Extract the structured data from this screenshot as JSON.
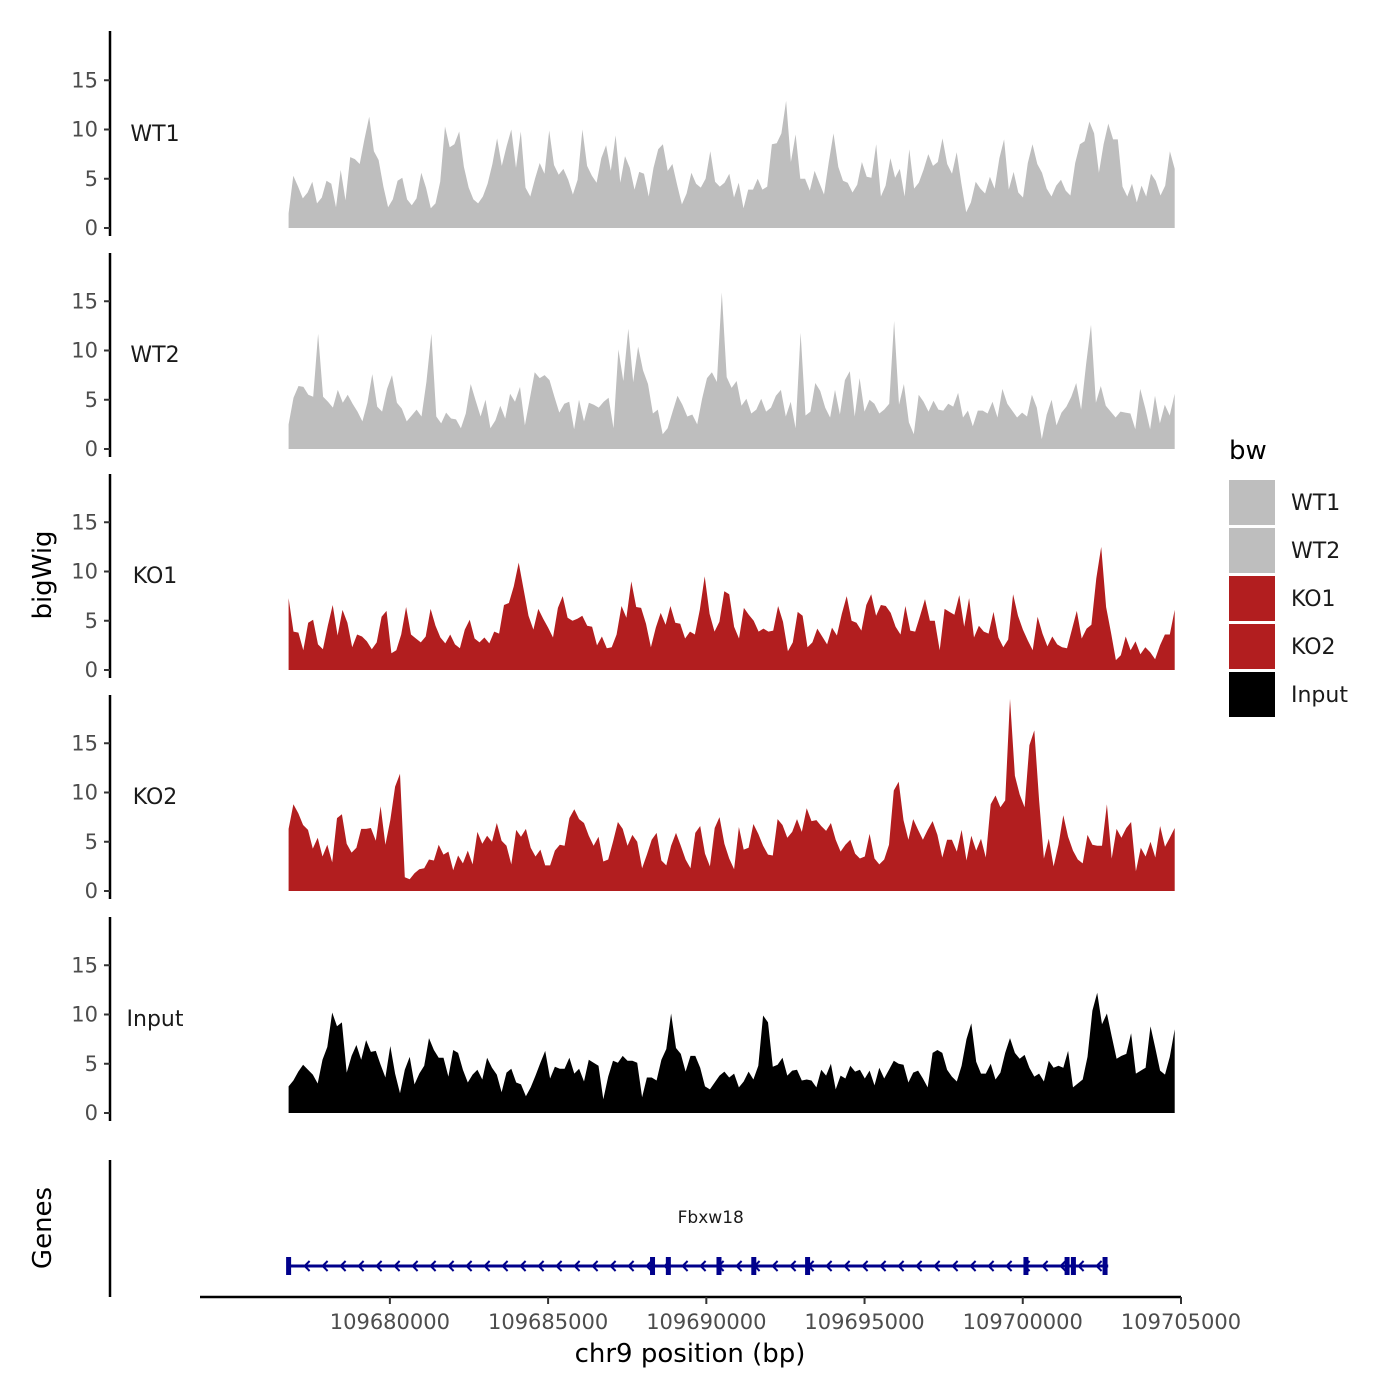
{
  "chart_data": {
    "type": "area",
    "chromosome": "chr9",
    "x_range_bp": [
      109676800,
      109704800
    ],
    "xlim": [
      109674000,
      109705000
    ],
    "x_ticks": [
      109680000,
      109685000,
      109690000,
      109695000,
      109700000,
      109705000
    ],
    "x_tick_labels": [
      "109680000",
      "109685000",
      "109690000",
      "109695000",
      "109700000",
      "109705000"
    ],
    "xlabel": "chr9 position (bp)",
    "ylabel": "bigWig",
    "genes_label": "Genes",
    "ylim": [
      0,
      20
    ],
    "y_ticks": [
      0,
      5,
      10,
      15
    ],
    "y_tick_labels": [
      "0",
      "5",
      "10",
      "15"
    ],
    "series": [
      {
        "name": "WT1",
        "color": "#bebebe",
        "values": [
          1.5,
          5.3,
          4.2,
          3.0,
          3.6,
          4.7,
          2.5,
          3.1,
          4.8,
          4.5,
          2.1,
          5.9,
          2.8,
          7.2,
          7.0,
          6.5,
          9.0,
          11.3,
          7.8,
          6.9,
          4.2,
          2.1,
          2.9,
          4.8,
          5.1,
          2.9,
          2.3,
          3.0,
          5.6,
          4.1,
          2.0,
          2.5,
          4.7,
          10.3,
          8.2,
          8.5,
          9.8,
          6.2,
          4.1,
          2.9,
          2.5,
          3.2,
          4.5,
          6.5,
          9.1,
          6.3,
          8.3,
          10.0,
          6.1,
          9.8,
          4.1,
          3.2,
          5.0,
          6.6,
          5.5,
          9.9,
          6.4,
          5.4,
          6.0,
          4.9,
          3.4,
          4.9,
          10.0,
          6.3,
          5.3,
          4.6,
          7.1,
          8.4,
          5.8,
          9.4,
          4.6,
          7.3,
          6.1,
          3.9,
          5.7,
          5.5,
          3.2,
          6.1,
          8.0,
          8.5,
          5.8,
          6.5,
          4.4,
          2.4,
          3.5,
          5.6,
          4.5,
          4.1,
          5.0,
          7.8,
          4.7,
          4.2,
          4.6,
          5.5,
          3.1,
          4.6,
          2.0,
          3.9,
          3.9,
          5.0,
          3.9,
          4.2,
          8.5,
          8.6,
          9.6,
          12.9,
          6.7,
          9.5,
          5.0,
          5.0,
          3.8,
          5.8,
          4.6,
          3.4,
          6.7,
          9.6,
          6.2,
          4.8,
          4.6,
          3.6,
          4.4,
          6.7,
          5.2,
          5.1,
          8.5,
          3.2,
          4.3,
          7.1,
          5.1,
          6.0,
          3.2,
          8.0,
          4.0,
          4.6,
          5.9,
          7.5,
          6.3,
          6.7,
          9.1,
          6.5,
          5.5,
          7.7,
          4.5,
          1.6,
          2.6,
          4.7,
          4.0,
          3.5,
          5.2,
          4.0,
          7.1,
          9.0,
          3.9,
          5.7,
          3.6,
          3.1,
          6.6,
          8.5,
          6.5,
          5.6,
          4.0,
          3.2,
          4.3,
          4.9,
          3.8,
          3.3,
          6.6,
          8.5,
          8.8,
          10.8,
          9.6,
          5.6,
          8.5,
          10.6,
          9.0,
          9.0,
          4.2,
          3.2,
          4.5,
          2.6,
          4.3,
          3.2,
          5.5,
          4.8,
          3.3,
          4.3,
          7.8,
          6.0
        ]
      },
      {
        "name": "WT2",
        "color": "#bebebe",
        "values": [
          2.5,
          5.2,
          6.4,
          6.3,
          5.5,
          5.3,
          11.7,
          5.3,
          4.8,
          4.2,
          6.0,
          4.7,
          5.5,
          4.6,
          3.8,
          2.8,
          4.7,
          7.6,
          4.3,
          3.8,
          6.1,
          7.5,
          4.7,
          4.1,
          2.8,
          3.4,
          4.0,
          3.3,
          6.8,
          11.7,
          3.3,
          2.6,
          3.7,
          3.1,
          3.0,
          2.1,
          3.6,
          6.6,
          4.9,
          3.3,
          5.0,
          2.1,
          2.9,
          4.4,
          3.1,
          5.6,
          4.8,
          6.3,
          2.4,
          5.1,
          7.8,
          7.2,
          7.5,
          7.0,
          5.3,
          3.7,
          4.6,
          4.8,
          2.0,
          5.0,
          2.8,
          4.7,
          4.5,
          4.2,
          4.8,
          5.2,
          2.1,
          10.1,
          6.9,
          12.2,
          6.8,
          10.4,
          8.0,
          6.6,
          3.6,
          4.0,
          1.5,
          2.1,
          3.8,
          5.4,
          4.5,
          3.3,
          3.5,
          2.5,
          5.1,
          7.2,
          7.8,
          6.8,
          15.9,
          7.3,
          6.2,
          6.9,
          4.4,
          5.1,
          3.6,
          4.0,
          5.1,
          3.8,
          4.2,
          5.4,
          6.0,
          3.3,
          4.8,
          2.1,
          11.8,
          3.4,
          3.8,
          6.7,
          5.9,
          4.2,
          3.2,
          6.0,
          3.5,
          7.0,
          7.9,
          3.3,
          7.2,
          3.8,
          5.0,
          4.6,
          3.6,
          4.0,
          4.6,
          13.0,
          4.5,
          6.6,
          2.7,
          1.5,
          5.5,
          4.8,
          3.8,
          4.9,
          4.0,
          3.9,
          4.6,
          4.3,
          5.7,
          3.2,
          3.9,
          2.3,
          3.9,
          3.9,
          3.6,
          4.8,
          3.2,
          6.1,
          4.6,
          3.9,
          3.2,
          3.7,
          3.3,
          5.5,
          4.2,
          1.0,
          3.5,
          5.0,
          2.4,
          3.7,
          4.3,
          5.3,
          6.7,
          4.0,
          8.6,
          12.6,
          4.7,
          6.4,
          4.4,
          3.8,
          3.2,
          3.8,
          3.7,
          3.6,
          2.0,
          6.1,
          4.2,
          2.0,
          5.4,
          2.6,
          4.5,
          3.4,
          5.6
        ]
      },
      {
        "name": "KO1",
        "color": "#b21e1f",
        "values": [
          7.3,
          3.9,
          3.8,
          2.0,
          4.8,
          5.1,
          2.6,
          2.1,
          4.5,
          6.6,
          3.5,
          6.1,
          4.8,
          2.3,
          3.6,
          3.4,
          2.9,
          2.1,
          2.8,
          5.4,
          6.0,
          1.7,
          2.0,
          3.6,
          6.4,
          3.6,
          3.2,
          2.8,
          3.4,
          6.2,
          4.5,
          3.3,
          2.7,
          3.6,
          2.6,
          2.2,
          4.1,
          5.1,
          3.2,
          2.8,
          3.3,
          2.7,
          3.9,
          3.7,
          6.6,
          6.8,
          8.5,
          10.9,
          8.2,
          5.5,
          4.1,
          6.2,
          5.2,
          4.3,
          3.3,
          6.3,
          7.5,
          5.3,
          5.0,
          5.2,
          5.5,
          4.5,
          4.4,
          2.5,
          3.4,
          2.2,
          2.3,
          3.6,
          6.5,
          5.3,
          9.0,
          6.4,
          6.3,
          4.7,
          2.3,
          4.3,
          5.8,
          4.6,
          6.5,
          4.8,
          4.7,
          3.2,
          3.9,
          3.6,
          6.1,
          9.5,
          5.7,
          3.9,
          4.9,
          8.0,
          7.7,
          4.4,
          3.2,
          6.3,
          5.6,
          5.0,
          3.9,
          4.2,
          3.9,
          4.0,
          6.5,
          4.9,
          1.9,
          2.8,
          5.9,
          5.5,
          2.3,
          2.8,
          4.2,
          3.4,
          2.6,
          4.3,
          3.5,
          5.7,
          7.5,
          5.0,
          4.8,
          4.0,
          6.6,
          7.7,
          5.5,
          6.6,
          6.5,
          5.8,
          4.4,
          3.6,
          6.5,
          4.0,
          3.9,
          5.5,
          7.2,
          5.0,
          5.0,
          2.0,
          6.2,
          5.9,
          5.6,
          7.6,
          4.4,
          7.3,
          3.3,
          4.5,
          3.9,
          3.7,
          5.9,
          3.3,
          2.3,
          3.1,
          7.7,
          5.5,
          4.1,
          3.0,
          2.0,
          5.4,
          3.7,
          2.4,
          3.4,
          2.6,
          2.3,
          2.2,
          4.1,
          6.0,
          3.2,
          4.2,
          4.6,
          9.3,
          12.5,
          6.4,
          3.8,
          1.0,
          1.5,
          3.4,
          2.0,
          2.9,
          1.6,
          2.3,
          1.8,
          1.1,
          2.5,
          3.6,
          3.6,
          6.1
        ]
      },
      {
        "name": "KO2",
        "color": "#b21e1f",
        "values": [
          6.3,
          8.8,
          7.9,
          6.7,
          6.2,
          4.3,
          5.4,
          3.5,
          4.7,
          2.9,
          7.4,
          7.8,
          4.8,
          3.9,
          4.4,
          6.3,
          6.3,
          6.4,
          5.1,
          8.6,
          4.7,
          7.2,
          10.6,
          11.9,
          1.4,
          1.2,
          1.8,
          2.2,
          2.3,
          3.2,
          3.1,
          4.7,
          3.7,
          4.0,
          2.1,
          3.6,
          2.8,
          4.1,
          2.7,
          6.0,
          4.8,
          5.6,
          5.0,
          6.9,
          5.1,
          4.6,
          2.7,
          6.2,
          5.5,
          6.3,
          4.4,
          3.5,
          4.2,
          2.6,
          2.6,
          4.1,
          4.7,
          4.6,
          7.4,
          8.3,
          7.3,
          6.9,
          5.6,
          4.6,
          5.5,
          3.0,
          3.2,
          5.0,
          7.0,
          6.3,
          4.6,
          5.7,
          5.0,
          2.3,
          3.7,
          5.2,
          5.9,
          3.1,
          2.6,
          4.6,
          5.9,
          4.6,
          3.2,
          2.3,
          5.9,
          6.6,
          3.8,
          2.5,
          6.4,
          7.5,
          4.8,
          3.3,
          2.2,
          6.5,
          4.2,
          4.4,
          6.8,
          5.8,
          4.6,
          3.7,
          3.6,
          7.3,
          6.7,
          5.4,
          6.0,
          7.3,
          6.0,
          8.4,
          7.1,
          7.2,
          6.6,
          6.1,
          6.9,
          5.2,
          4.0,
          4.7,
          5.2,
          3.8,
          3.3,
          3.5,
          5.8,
          3.3,
          2.7,
          3.2,
          4.7,
          10.2,
          11.1,
          7.2,
          5.2,
          7.3,
          6.2,
          5.2,
          6.2,
          7.1,
          5.7,
          3.4,
          5.2,
          5.2,
          4.0,
          6.2,
          3.1,
          5.6,
          4.1,
          5.3,
          3.4,
          8.8,
          9.7,
          8.5,
          9.2,
          19.5,
          11.7,
          9.8,
          8.5,
          14.8,
          16.3,
          9.2,
          3.3,
          5.3,
          2.5,
          4.7,
          7.7,
          5.5,
          4.1,
          3.2,
          2.8,
          5.7,
          4.7,
          4.6,
          4.6,
          8.8,
          3.3,
          6.3,
          5.4,
          6.4,
          7.0,
          2.0,
          4.4,
          3.5,
          5.0,
          3.4,
          6.6,
          4.5,
          5.4,
          6.4
        ]
      },
      {
        "name": "Input",
        "color": "#000000",
        "values": [
          2.7,
          3.3,
          4.2,
          4.9,
          4.4,
          3.9,
          3.0,
          5.4,
          6.7,
          10.2,
          8.8,
          9.2,
          4.1,
          5.8,
          6.9,
          5.4,
          7.4,
          6.2,
          6.3,
          4.9,
          3.6,
          6.8,
          4.0,
          2.0,
          4.4,
          5.7,
          2.9,
          4.0,
          4.8,
          7.6,
          6.4,
          5.6,
          5.6,
          3.7,
          6.4,
          6.1,
          4.4,
          3.1,
          3.9,
          4.4,
          3.4,
          5.6,
          4.6,
          3.9,
          2.1,
          4.1,
          4.5,
          3.1,
          2.9,
          1.7,
          2.6,
          3.8,
          5.1,
          6.3,
          3.5,
          4.7,
          4.5,
          4.5,
          5.6,
          4.0,
          4.5,
          3.2,
          5.4,
          5.1,
          4.8,
          1.4,
          3.7,
          5.3,
          5.1,
          5.8,
          5.3,
          5.3,
          5.1,
          1.6,
          3.6,
          3.6,
          3.3,
          5.4,
          6.5,
          10.1,
          6.6,
          6.0,
          4.2,
          5.8,
          5.8,
          4.6,
          2.7,
          2.4,
          3.1,
          3.8,
          4.2,
          3.6,
          4.0,
          2.6,
          3.2,
          4.2,
          3.4,
          4.8,
          9.9,
          9.2,
          4.7,
          4.9,
          5.6,
          3.8,
          4.3,
          4.4,
          3.3,
          3.4,
          3.3,
          2.6,
          4.4,
          3.8,
          5.0,
          2.4,
          3.8,
          3.5,
          4.8,
          4.2,
          4.4,
          3.5,
          4.3,
          2.8,
          4.6,
          3.5,
          4.4,
          5.3,
          5.0,
          4.9,
          3.1,
          4.1,
          4.3,
          3.5,
          2.6,
          6.1,
          6.4,
          6.1,
          4.4,
          3.7,
          3.2,
          4.8,
          7.5,
          9.1,
          5.2,
          4.0,
          4.0,
          5.0,
          3.4,
          4.1,
          6.1,
          7.6,
          6.1,
          5.5,
          5.9,
          4.6,
          3.7,
          4.0,
          3.2,
          5.3,
          4.6,
          4.8,
          4.6,
          6.3,
          2.6,
          3.0,
          3.4,
          5.7,
          10.4,
          12.2,
          9.0,
          10.1,
          7.8,
          5.5,
          5.8,
          6.0,
          8.1,
          4.0,
          4.3,
          4.6,
          8.8,
          6.6,
          4.3,
          3.9,
          5.7,
          8.5
        ]
      }
    ],
    "legend": {
      "title": "bw",
      "entries": [
        {
          "label": "WT1",
          "color": "#bebebe"
        },
        {
          "label": "WT2",
          "color": "#bebebe"
        },
        {
          "label": "KO1",
          "color": "#b21e1f"
        },
        {
          "label": "KO2",
          "color": "#b21e1f"
        },
        {
          "label": "Input",
          "color": "#000000"
        }
      ]
    },
    "genes": [
      {
        "name": "Fbxw18",
        "start": 109676800,
        "end": 109702700,
        "strand": "-",
        "color": "#00008b",
        "exons": [
          109676800,
          109688300,
          109688800,
          109690400,
          109691500,
          109693200,
          109700100,
          109701400,
          109701600,
          109702600
        ]
      }
    ]
  }
}
